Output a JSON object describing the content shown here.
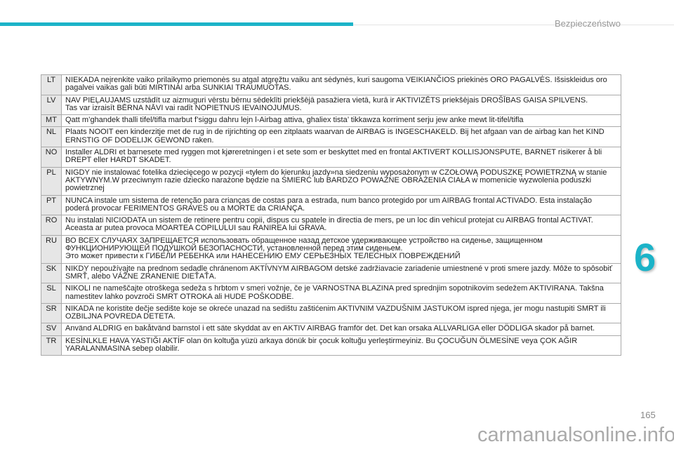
{
  "header": {
    "section": "Bezpieczeństwo",
    "accent_color": "#1bb3c8"
  },
  "chapter": "6",
  "page_number": "165",
  "watermark": "carmanualsonline.info",
  "rows": [
    {
      "code": "LT",
      "text": "NIEKADA neįrenkite vaiko prilaikymo priemonės su atgal atgręžtu vaiku ant sėdynės, kuri saugoma VEIKIANČIOS priekinės ORO PAGALVĖS. Išsiskleidus oro pagalvei vaikas gali būti MIRTINAI arba SUNKIAI TRAUMUOTAS."
    },
    {
      "code": "LV",
      "text": "NAV PIEĻAUJAMS uzstādīt uz aizmuguri vērstu bērnu sēdeklīti priekšējā pasažiera  vietā, kurā ir AKTIVIZĒTS priekšējais DROŠĪBAS GAISA SPILVENS.\nTas var izraisīt BĒRNA NĀVI vai radīt NOPIETNUS IEVAINOJUMUS."
    },
    {
      "code": "MT",
      "text": "Qatt m’ghandek thalli tifel/tifla marbut f’siggu dahru lejn l-Airbag attiva, ghaliex tista’ tikkawza korriment serju jew anke mewt lit-tifel/tifla"
    },
    {
      "code": "NL",
      "text": "Plaats NOOIT een kinderzitje met de rug in de rijrichting op een zitplaats waarvan de AIRBAG is INGESCHAKELD. Bij het afgaan van de airbag kan het KIND ERNSTIG OF DODELIJK GEWOND raken."
    },
    {
      "code": "NO",
      "text": "Installer ALDRI et barnesete med ryggen mot kjøreretningen i et sete som er beskyttet med en frontal  AKTIVERT KOLLISJONSPUTE, BARNET risikerer å bli DREPT eller HARDT SKADET."
    },
    {
      "code": "PL",
      "text": "NIGDY nie instalować fotelika dziecięcego w pozycji «tyłem do kierunku jazdy»na siedzeniu wyposażonym w  CZOŁOWĄ PODUSZKĘ POWIETRZNĄ w stanie AKTYWNYM.W przeciwnym razie dziecko narażone będzie na ŚMIERĆ lub BARDZO POWAŻNE OBRAŻENIA CIAŁA w momenicie wyzwolenia poduszki powietrznej"
    },
    {
      "code": "PT",
      "text": "NUNCA instale um sistema de retenção para crianças de costas para a estrada, num banco protegido por um AIRBAG frontal ACTIVADO. Esta instalação poderá provocar FERIMENTOS GRAVES ou a MORTE da CRIANÇA."
    },
    {
      "code": "RO",
      "text": "Nu instalati NICIODATA un sistem de retinere pentru copii, dispus cu spatele in directia de mers, pe un loc din vehicul protejat cu AIRBAG frontal ACTIVAT. Aceasta ar putea provoca MOARTEA COPILULUI sau RANIREA lui GRAVA."
    },
    {
      "code": "RU",
      "text": "ВО ВСЕХ СЛУЧАЯХ ЗАПРЕЩАЕТСЯ использовать обращенное назад детское удерживающее устройство на сиденье, защищенном ФУНКЦИОНИРУЮЩЕЙ ПОДУШКОЙ БЕЗОПАСНОСТИ, установленной перед этим сиденьем.\nЭто может привести к ГИБЕЛИ РЕБЕНКА или НАНЕСЕНИЮ ЕМУ СЕРЬЕЗНЫХ ТЕЛЕСНЫХ ПОВРЕЖДЕНИЙ"
    },
    {
      "code": "SK",
      "text": "NIKDY nepoužívajte na prednom sedadle chránenom AKTÍVNYM AIRBAGOM detské zadržiavacie zariadenie umiestnené v proti smere jazdy. Môže to spôsobiť SMRŤ, alebo VÁŽNE ZRANENIE DIEŤAŤA."
    },
    {
      "code": "SL",
      "text": "NIKOLI ne nameščajte otroškega sedeža s hrbtom v smeri vožnje, če je VARNOSTNA BLAZINA pred sprednjim sopotnikovim sedežem AKTIVIRANA. Takšna namestitev lahko povzroči SMRT OTROKA ali HUDE POŠKODBE."
    },
    {
      "code": "SR",
      "text": "NIKADA ne koristite dečje sedište koje se okreće unazad na sedištu zaštićenim AKTIVNIM VAZDUŠNIM JASTUKOM ispred njega, jer mogu nastupiti SMRT ili OZBILJNA POVREDA DETETA."
    },
    {
      "code": "SV",
      "text": "Använd ALDRIG en bakåtvänd barnstol i ett säte skyddat av en AKTIV AIRBAG framför det. Det kan orsaka ALLVARLIGA eller DÖDLIGA skador på barnet."
    },
    {
      "code": "TR",
      "text": "KESİNLKLE HAVA YASTIĞI AKTİF olan ön koltuğa yüzü arkaya dönük bir çocuk koltuğu yerleştirmeyiniz. Bu ÇOCUĞUN ÖLMESİNE veya ÇOK AĞIR YARALANMASINA sebep olabilir."
    }
  ]
}
